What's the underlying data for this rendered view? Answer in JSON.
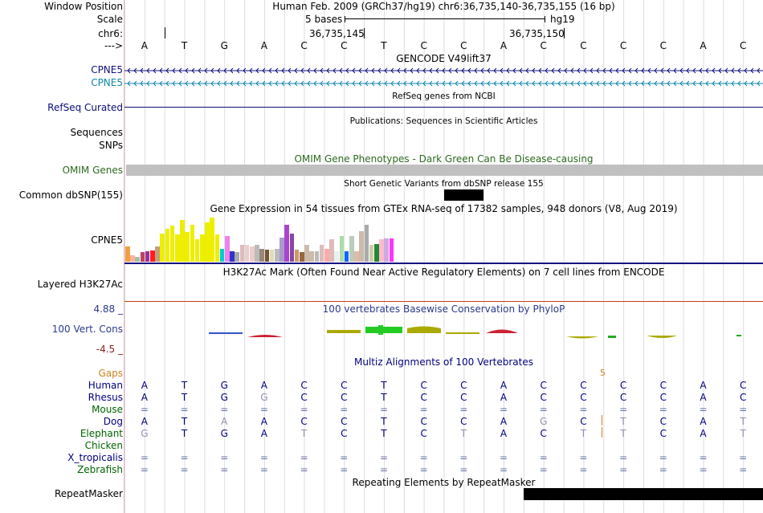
{
  "header": {
    "window_label": "Window Position",
    "window_text": "Human Feb. 2009 (GRCh37/hg19)   chr6:36,735,140-36,735,155 (16 bp)",
    "scale_label": "Scale",
    "scale_text": "5 bases",
    "scale_assembly": "hg19",
    "chrom_label": "chr6:",
    "coord1": "36,735,145",
    "coord2": "36,735,150",
    "arrow_label": "--->"
  },
  "bases": [
    "A",
    "T",
    "G",
    "A",
    "C",
    "C",
    "T",
    "C",
    "C",
    "A",
    "C",
    "C",
    "C",
    "C",
    "A",
    "C"
  ],
  "tracks": {
    "gencode_title": "GENCODE V49lift37",
    "gencode1": "CPNE5",
    "gencode2": "CPNE5",
    "refseq_label": "RefSeq Curated",
    "refseq_title": "RefSeq genes from NCBI",
    "pubs_title": "Publications: Sequences in Scientific Articles",
    "sequences_label": "Sequences",
    "snps_label": "SNPs",
    "omim_title": "OMIM Gene Phenotypes - Dark Green Can Be Disease-causing",
    "omim_label": "OMIM Genes",
    "dbsnp_title": "Short Genetic Variants from dbSNP release 155",
    "dbsnp_label": "Common dbSNP(155)",
    "gtex_title": "Gene Expression in 54 tissues from GTEx RNA-seq of 17382 samples, 948 donors (V8, Aug 2019)",
    "gtex_label": "CPNE5",
    "h3k27_title": "H3K27Ac Mark (Often Found Near Active Regulatory Elements) on 7 cell lines from ENCODE",
    "h3k27_label": "Layered H3K27Ac",
    "cons_title": "100 vertebrates Basewise Conservation by PhyloP",
    "cons_max": "4.88 _",
    "cons_label": "100 Vert. Cons",
    "cons_min": "-4.5 _",
    "multiz_title": "Multiz Alignments of 100 Vertebrates",
    "gaps_label": "Gaps",
    "gap_value": "5",
    "repeat_title": "Repeating Elements by RepeatMasker",
    "repeat_label": "RepeatMasker"
  },
  "gtex_bars": [
    {
      "v": 0.33,
      "c": "#f0a040"
    },
    {
      "v": 0.14,
      "c": "#ffb0a0"
    },
    {
      "v": 0.1,
      "c": "#a0c0a0"
    },
    {
      "v": 0.2,
      "c": "#c04060"
    },
    {
      "v": 0.22,
      "c": "#993399"
    },
    {
      "v": 0.24,
      "c": "#ff2020"
    },
    {
      "v": 0.32,
      "c": "#c0a080"
    },
    {
      "v": 0.6,
      "c": "#eeee00"
    },
    {
      "v": 0.7,
      "c": "#eeee00"
    },
    {
      "v": 0.78,
      "c": "#eeee00"
    },
    {
      "v": 0.58,
      "c": "#eeee00"
    },
    {
      "v": 0.9,
      "c": "#eeee00"
    },
    {
      "v": 0.63,
      "c": "#eeee00"
    },
    {
      "v": 0.8,
      "c": "#eeee00"
    },
    {
      "v": 0.48,
      "c": "#eeee00"
    },
    {
      "v": 0.58,
      "c": "#eeee00"
    },
    {
      "v": 0.85,
      "c": "#eeee00"
    },
    {
      "v": 0.95,
      "c": "#eeee00"
    },
    {
      "v": 0.58,
      "c": "#eeee00"
    },
    {
      "v": 0.28,
      "c": "#00cccc"
    },
    {
      "v": 0.55,
      "c": "#ee82ee"
    },
    {
      "v": 0.22,
      "c": "#3333cc"
    },
    {
      "v": 0.2,
      "c": "#aaaaaa"
    },
    {
      "v": 0.37,
      "c": "#ddbbbb"
    },
    {
      "v": 0.37,
      "c": "#eecccc"
    },
    {
      "v": 0.33,
      "c": "#eecccc"
    },
    {
      "v": 0.37,
      "c": "#bbbbbb"
    },
    {
      "v": 0.28,
      "c": "#998877"
    },
    {
      "v": 0.25,
      "c": "#775533"
    },
    {
      "v": 0.25,
      "c": "#ddddbb"
    },
    {
      "v": 0.28,
      "c": "#bbbbbb"
    },
    {
      "v": 0.52,
      "c": "#aa99cc"
    },
    {
      "v": 0.8,
      "c": "#aa44cc"
    },
    {
      "v": 0.6,
      "c": "#8844aa"
    },
    {
      "v": 0.25,
      "c": "#cc9966"
    },
    {
      "v": 0.2,
      "c": "#996644"
    },
    {
      "v": 0.37,
      "c": "#ccbbaa"
    },
    {
      "v": 0.22,
      "c": "#ccbbaa"
    },
    {
      "v": 0.22,
      "c": "#bbbbbb"
    },
    {
      "v": 0.37,
      "c": "#ddbbbb"
    },
    {
      "v": 0.27,
      "c": "#ffaaaa"
    },
    {
      "v": 0.48,
      "c": "#ddbbbb"
    },
    {
      "v": 0.22,
      "c": "#eeeeee"
    },
    {
      "v": 0.55,
      "c": "#aaddaa"
    },
    {
      "v": 0.22,
      "c": "#1166ff"
    },
    {
      "v": 0.55,
      "c": "#bbccbb"
    },
    {
      "v": 0.22,
      "c": "#ddbbaa"
    },
    {
      "v": 0.65,
      "c": "#ccbbaa"
    },
    {
      "v": 0.8,
      "c": "#aaaaaa"
    },
    {
      "v": 0.37,
      "c": "#ccccaa"
    },
    {
      "v": 0.38,
      "c": "#228833"
    },
    {
      "v": 0.48,
      "c": "#ffbbcc"
    },
    {
      "v": 0.5,
      "c": "#ccaadd"
    },
    {
      "v": 0.5,
      "c": "#ff33ff"
    }
  ],
  "species": [
    {
      "name": "Human",
      "color": "#000080",
      "seq": [
        "A",
        "T",
        "G",
        "A",
        "C",
        "C",
        "T",
        "C",
        "C",
        "A",
        "C",
        "C",
        "C",
        "C",
        "A",
        "C"
      ]
    },
    {
      "name": "Rhesus",
      "color": "#000080",
      "seq": [
        "A",
        "T",
        "G",
        "G",
        "C",
        "C",
        "T",
        "C",
        "C",
        "A",
        "C",
        "C",
        "C",
        "C",
        "A",
        "C"
      ]
    },
    {
      "name": "Mouse",
      "color": "#006400",
      "seq": [
        "=",
        "=",
        "=",
        "=",
        "=",
        "=",
        "=",
        "=",
        "=",
        "=",
        "=",
        "=",
        "=",
        "=",
        "=",
        "="
      ]
    },
    {
      "name": "Dog",
      "color": "#000080",
      "seq": [
        "A",
        "T",
        "A",
        "A",
        "C",
        "C",
        "T",
        "C",
        "C",
        "A",
        "G",
        "C",
        "T",
        "C",
        "A",
        "T"
      ]
    },
    {
      "name": "Elephant",
      "color": "#006400",
      "seq": [
        "G",
        "T",
        "G",
        "A",
        "T",
        "C",
        "T",
        "C",
        "T",
        "A",
        "C",
        "T",
        "T",
        "C",
        "A",
        "T"
      ]
    },
    {
      "name": "Chicken",
      "color": "#006400",
      "seq": []
    },
    {
      "name": "X_tropicalis",
      "color": "#000080",
      "seq": [
        "=",
        "=",
        "=",
        "=",
        "=",
        "=",
        "=",
        "=",
        "=",
        "=",
        "=",
        "=",
        "=",
        "=",
        "=",
        "="
      ]
    },
    {
      "name": "Zebrafish",
      "color": "#006400",
      "seq": [
        "=",
        "=",
        "=",
        "=",
        "=",
        "=",
        "=",
        "=",
        "=",
        "=",
        "=",
        "=",
        "=",
        "=",
        "=",
        "="
      ]
    }
  ],
  "colors": {
    "gencode1": "#101080",
    "gencode2": "#1088a8",
    "omim": "#2d6a1e",
    "omim_bar": "#c0c0c0",
    "cons": "#2a3a8c",
    "multiz": "#000080",
    "gaps": "#d08020",
    "h3k27_line": "#c04010",
    "refseq": "#0c0c78"
  }
}
